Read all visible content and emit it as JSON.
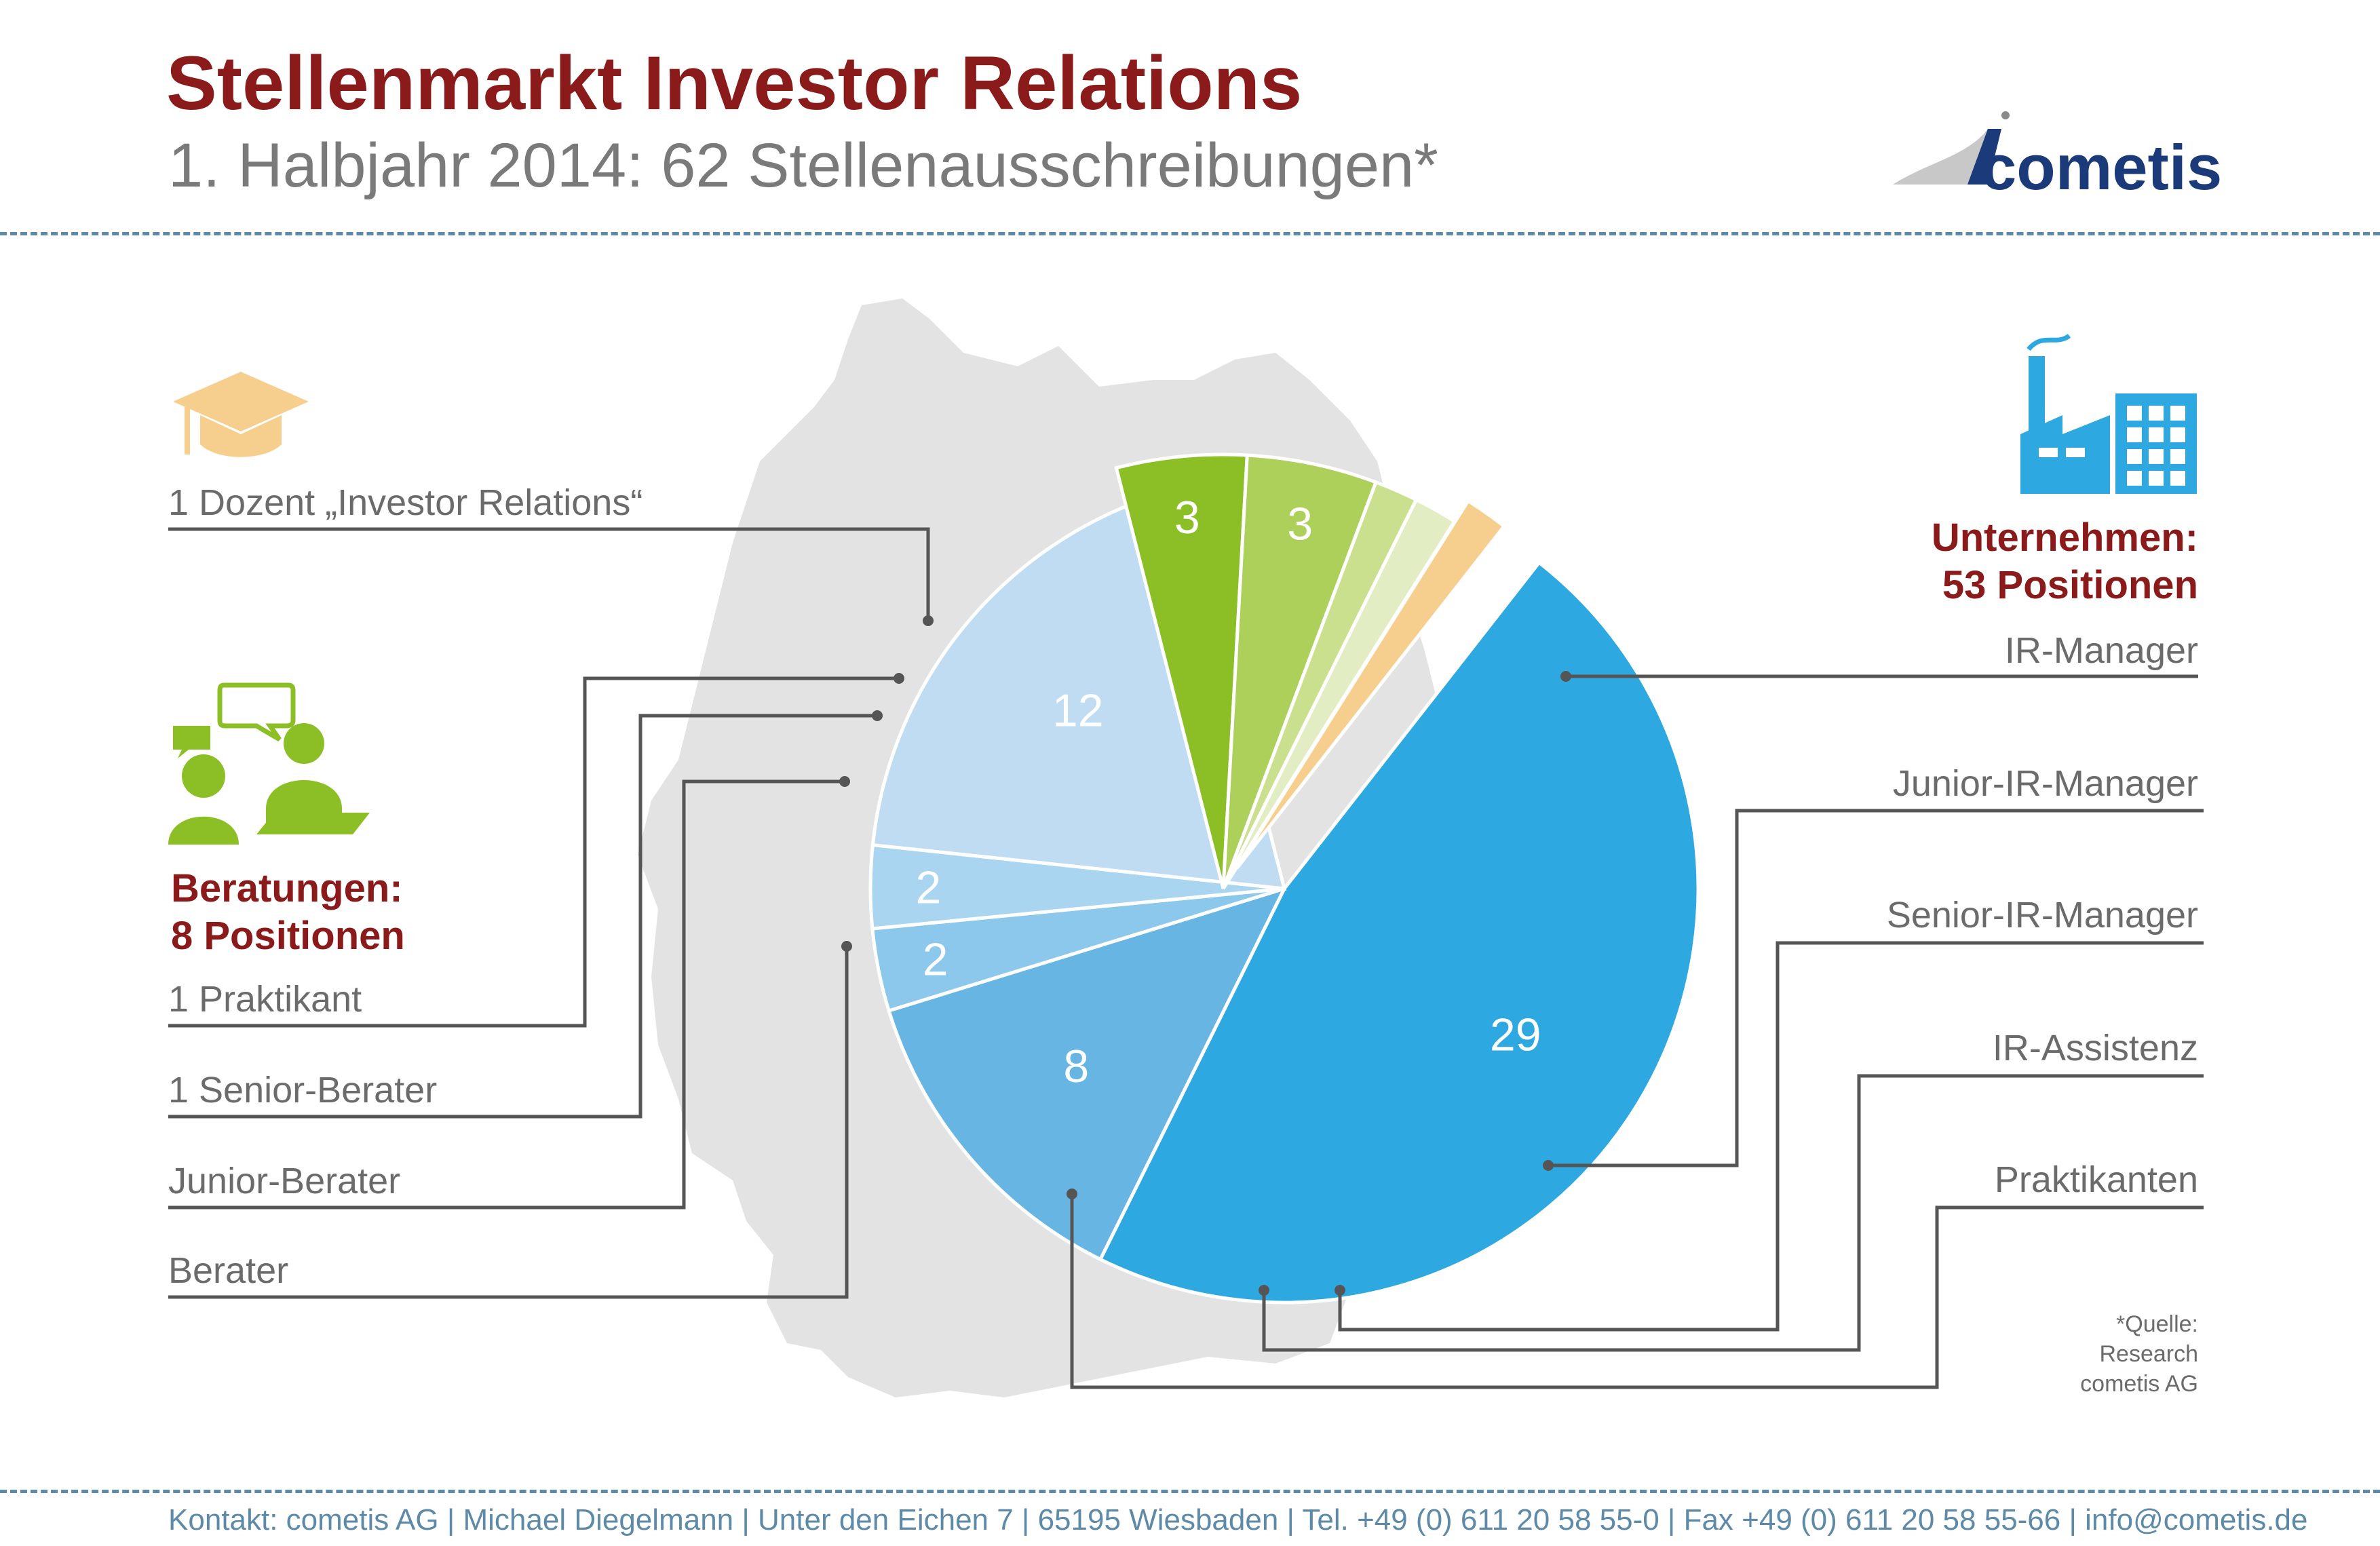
{
  "header": {
    "title": "Stellenmarkt Investor Relations",
    "subtitle": "1. Halbjahr 2014: 62 Stellenausschreibungen*",
    "logo_text": "cometis"
  },
  "groups": {
    "unternehmen": {
      "line1": "Unternehmen:",
      "line2": "53 Positionen",
      "color": "#2ea8e0"
    },
    "beratungen": {
      "line1": "Beratungen:",
      "line2": "8 Positionen",
      "color": "#8cbf26"
    },
    "dozent_color": "#f6cf8f"
  },
  "labels": {
    "dozent": "1 Dozent „Investor Relations“",
    "praktikant": "1 Praktikant",
    "senior_berater": "1 Senior-Berater",
    "junior_berater": "Junior-Berater",
    "berater": "Berater",
    "ir_manager": "IR-Manager",
    "junior_ir_manager": "Junior-IR-Manager",
    "senior_ir_manager": "Senior-IR-Manager",
    "ir_assistenz": "IR-Assistenz",
    "praktikanten": "Praktikanten"
  },
  "source": {
    "line1": "*Quelle:",
    "line2": "Research",
    "line3": "cometis AG"
  },
  "footer": "Kontakt: cometis AG | Michael Diegelmann | Unter den Eichen 7 | 65195 Wiesbaden | Tel. +49 (0) 611 20 58 55-0 | Fax +49 (0) 611 20 58 55-66 | info@cometis.de",
  "chart_data": {
    "type": "pie",
    "total": 62,
    "slices": [
      {
        "name": "IR-Manager",
        "value": 29,
        "group": "Unternehmen",
        "color": "#2ea8e0",
        "label": "29"
      },
      {
        "name": "Junior-IR-Manager",
        "value": 8,
        "group": "Unternehmen",
        "color": "#66b5e3",
        "label": "8"
      },
      {
        "name": "Senior-IR-Manager",
        "value": 2,
        "group": "Unternehmen",
        "color": "#8cc8ec",
        "label": "2"
      },
      {
        "name": "IR-Assistenz",
        "value": 2,
        "group": "Unternehmen",
        "color": "#a9d5f1",
        "label": "2"
      },
      {
        "name": "Praktikanten",
        "value": 12,
        "group": "Unternehmen",
        "color": "#c0dcf3",
        "label": "12"
      },
      {
        "name": "Berater",
        "value": 3,
        "group": "Beratungen",
        "color": "#8cbf26",
        "label": "3"
      },
      {
        "name": "Junior-Berater",
        "value": 3,
        "group": "Beratungen",
        "color": "#add05a",
        "label": "3"
      },
      {
        "name": "Senior-Berater",
        "value": 1,
        "group": "Beratungen",
        "color": "#cbe08f",
        "label": ""
      },
      {
        "name": "Praktikant",
        "value": 1,
        "group": "Beratungen",
        "color": "#e2edc4",
        "label": ""
      },
      {
        "name": "Dozent „Investor Relations“",
        "value": 1,
        "group": "Dozent",
        "color": "#f6cf8f",
        "label": ""
      }
    ]
  }
}
